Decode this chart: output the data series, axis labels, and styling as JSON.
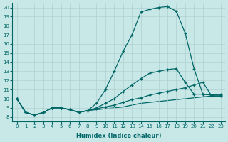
{
  "xlabel": "Humidex (Indice chaleur)",
  "background_color": "#c8e8e8",
  "line_color": "#006666",
  "xlim": [
    -0.5,
    23.5
  ],
  "ylim": [
    7.5,
    20.5
  ],
  "yticks": [
    8,
    9,
    10,
    11,
    12,
    13,
    14,
    15,
    16,
    17,
    18,
    19,
    20
  ],
  "xticks": [
    0,
    1,
    2,
    3,
    4,
    5,
    6,
    7,
    8,
    9,
    10,
    11,
    12,
    13,
    14,
    15,
    16,
    17,
    18,
    19,
    20,
    21,
    22,
    23
  ],
  "line1_x": [
    0,
    1,
    2,
    3,
    4,
    5,
    6,
    7,
    8,
    9,
    10,
    11,
    12,
    13,
    14,
    15,
    16,
    17,
    18,
    19,
    20,
    21,
    22,
    23
  ],
  "line1_y": [
    10.0,
    8.5,
    8.2,
    8.5,
    9.0,
    9.0,
    8.8,
    8.5,
    8.7,
    9.5,
    11.0,
    13.0,
    15.2,
    17.0,
    19.5,
    19.8,
    20.0,
    20.1,
    19.6,
    17.2,
    13.3,
    10.5,
    10.4,
    10.5
  ],
  "line2_x": [
    0,
    1,
    2,
    3,
    4,
    5,
    6,
    7,
    8,
    9,
    10,
    11,
    12,
    13,
    14,
    15,
    16,
    17,
    18,
    19,
    20,
    21,
    22,
    23
  ],
  "line2_y": [
    10.0,
    8.5,
    8.2,
    8.5,
    9.0,
    9.0,
    8.8,
    8.5,
    8.7,
    9.0,
    9.5,
    10.0,
    10.8,
    11.5,
    12.2,
    12.8,
    13.0,
    13.2,
    13.3,
    11.8,
    10.5,
    10.5,
    10.4,
    10.4
  ],
  "line3_x": [
    0,
    1,
    2,
    3,
    4,
    5,
    6,
    7,
    8,
    9,
    10,
    11,
    12,
    13,
    14,
    15,
    16,
    17,
    18,
    19,
    20,
    21,
    22,
    23
  ],
  "line3_y": [
    10.0,
    8.5,
    8.2,
    8.5,
    9.0,
    9.0,
    8.8,
    8.5,
    8.7,
    8.9,
    9.1,
    9.3,
    9.6,
    9.9,
    10.1,
    10.4,
    10.6,
    10.8,
    11.0,
    11.2,
    11.5,
    11.8,
    10.3,
    10.3
  ],
  "line4_x": [
    0,
    1,
    2,
    3,
    4,
    5,
    6,
    7,
    8,
    9,
    10,
    11,
    12,
    13,
    14,
    15,
    16,
    17,
    18,
    19,
    20,
    21,
    22,
    23
  ],
  "line4_y": [
    10.0,
    8.5,
    8.2,
    8.5,
    9.0,
    9.0,
    8.8,
    8.5,
    8.7,
    8.8,
    8.9,
    9.0,
    9.1,
    9.3,
    9.5,
    9.6,
    9.7,
    9.8,
    9.9,
    10.0,
    10.1,
    10.2,
    10.3,
    10.3
  ]
}
